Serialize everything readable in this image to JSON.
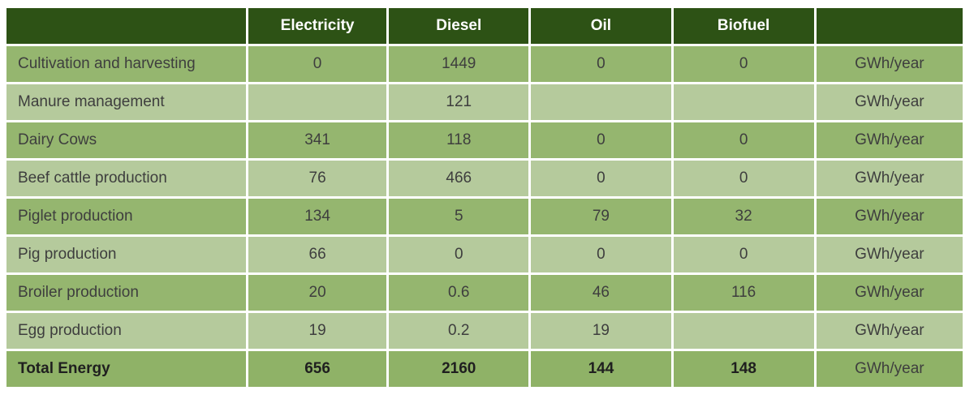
{
  "chart_data": {
    "type": "table",
    "title": "",
    "unit_label": "GWh/year",
    "columns": [
      "",
      "Electricity",
      "Diesel",
      "Oil",
      "Biofuel",
      ""
    ],
    "rows": [
      {
        "label": "Cultivation and harvesting",
        "values": [
          "0",
          "1449",
          "0",
          "0"
        ],
        "unit": "GWh/year"
      },
      {
        "label": "Manure management",
        "values": [
          "",
          "121",
          "",
          ""
        ],
        "unit": "GWh/year"
      },
      {
        "label": "Dairy Cows",
        "values": [
          "341",
          "118",
          "0",
          "0"
        ],
        "unit": "GWh/year"
      },
      {
        "label": "Beef cattle production",
        "values": [
          "76",
          "466",
          "0",
          "0"
        ],
        "unit": "GWh/year"
      },
      {
        "label": "Piglet production",
        "values": [
          "134",
          "5",
          "79",
          "32"
        ],
        "unit": "GWh/year"
      },
      {
        "label": "Pig production",
        "values": [
          "66",
          "0",
          "0",
          "0"
        ],
        "unit": "GWh/year"
      },
      {
        "label": "Broiler production",
        "values": [
          "20",
          "0.6",
          "46",
          "116"
        ],
        "unit": "GWh/year"
      },
      {
        "label": "Egg production",
        "values": [
          "19",
          "0.2",
          "19",
          ""
        ],
        "unit": "GWh/year"
      }
    ],
    "total": {
      "label": "Total Energy",
      "values": [
        "656",
        "2160",
        "144",
        "148"
      ],
      "unit": "GWh/year"
    },
    "layout": {
      "banding": "alternating rows",
      "legend": "none",
      "grid": "white 3px gaps between cells"
    },
    "colors": {
      "header_bg": "#2d5215",
      "header_text": "#ffffff",
      "row_dark_bg": "#95b66f",
      "row_light_bg": "#b5ca9c",
      "total_row_bg": "#8fb267",
      "cell_text": "#3e3e3e",
      "total_text": "#1f1f1f",
      "gap": "#ffffff"
    }
  }
}
